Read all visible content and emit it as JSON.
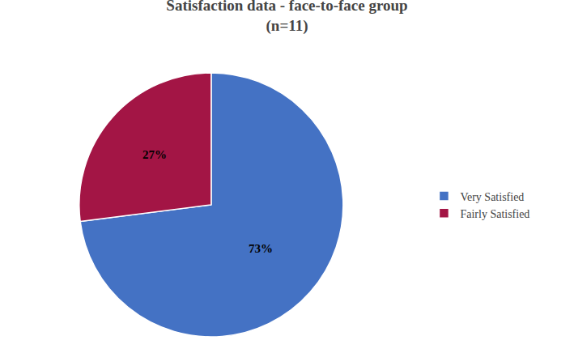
{
  "chart_data": {
    "type": "pie",
    "title": "Satisfaction data - face-to-face group",
    "subtitle": "(n=11)",
    "categories": [
      "Very Satisfied",
      "Fairly Satisfied"
    ],
    "values": [
      73,
      27
    ],
    "value_labels": [
      "73%",
      "27%"
    ],
    "colors": [
      "#4472C4",
      "#A31545"
    ],
    "data_labels": true,
    "legend": "right"
  }
}
